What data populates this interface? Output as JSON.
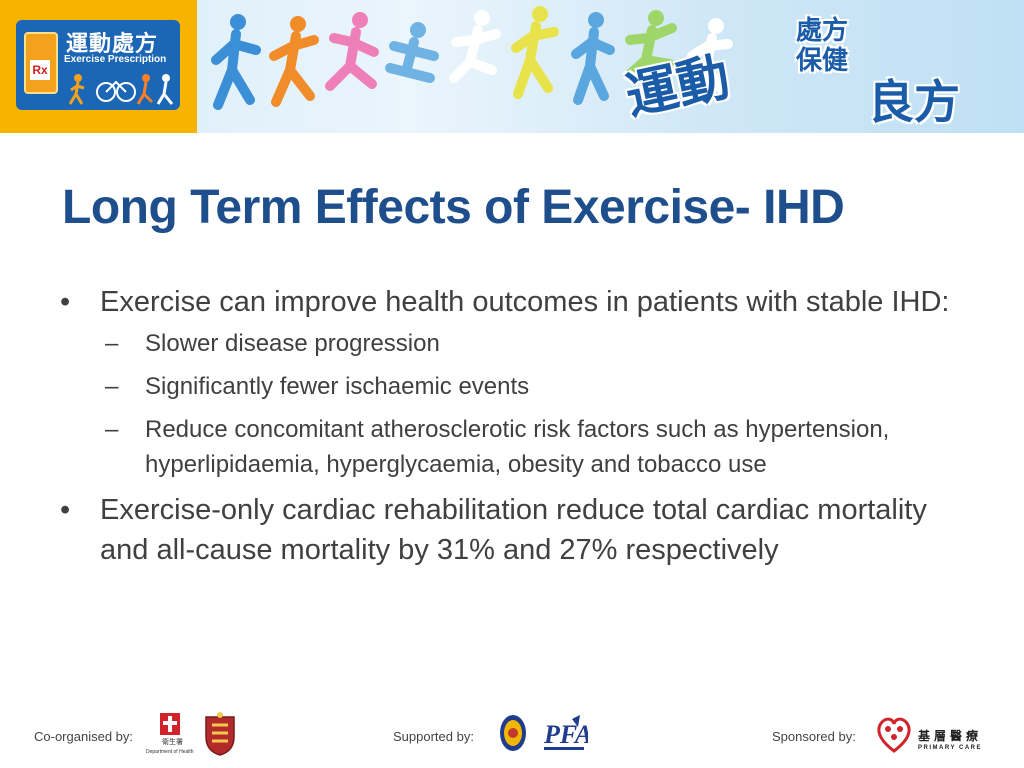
{
  "banner": {
    "logo_cn": "運動處方",
    "logo_en": "Exercise Prescription",
    "logo_rx": "Rx",
    "slogan_line1": "運動",
    "slogan_line2": "處方\n保健",
    "slogan_line3": "良方",
    "brand_color": "#1b66b5",
    "accent_color": "#f6b400"
  },
  "slide": {
    "title": "Long Term Effects of Exercise- IHD",
    "bullets": [
      {
        "text": "Exercise can improve health outcomes in patients with stable IHD:",
        "subs": [
          "Slower disease progression",
          "Significantly fewer ischaemic events",
          "Reduce concomitant atherosclerotic risk factors such as hypertension, hyperlipidaemia, hyperglycaemia, obesity and tobacco use"
        ]
      },
      {
        "text": "Exercise-only cardiac rehabilitation reduce total cardiac mortality and all-cause mortality by 31% and 27% respectively"
      }
    ],
    "title_color": "#1f4e8c",
    "text_color": "#404040"
  },
  "footer": {
    "co_organised": "Co-organised by:",
    "supported": "Supported by:",
    "sponsored": "Sponsored by:",
    "doh_cn": "衛生署",
    "doh_en": "Department of Health",
    "primary_care_cn": "基層醫療",
    "primary_care_en": "PRIMARY CARE"
  }
}
